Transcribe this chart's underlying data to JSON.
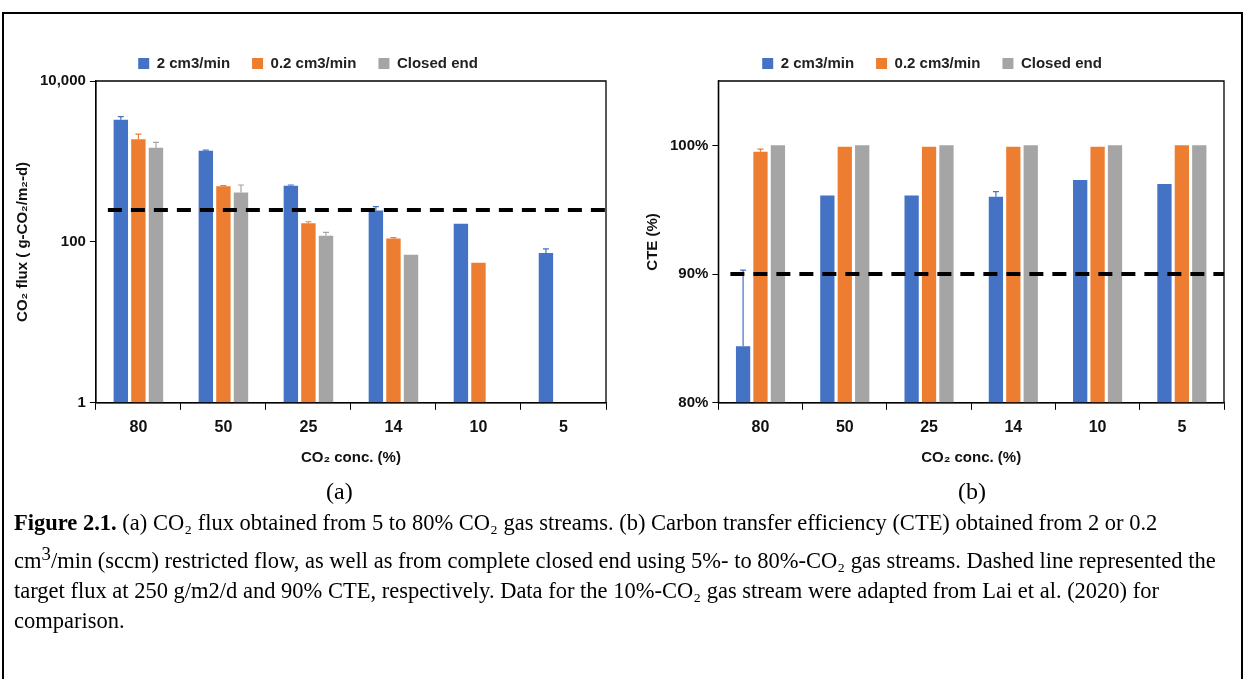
{
  "chart_data": [
    {
      "type": "bar",
      "xlabel": "CO₂ conc. (%)",
      "ylabel": "CO₂ flux ( g-CO₂/m₂-d)",
      "categories": [
        "80",
        "50",
        "25",
        "14",
        "10",
        "5"
      ],
      "log": "y",
      "ylim": [
        1,
        10000
      ],
      "yticks": [
        1,
        100,
        {
          "value": 10000,
          "label": "10,000"
        }
      ],
      "legend": "top",
      "series": [
        {
          "name": "2 cm3/min",
          "color": "#4472c4",
          "values": [
            3300,
            1360,
            500,
            245,
            168,
            73
          ],
          "errors": [
            300,
            20,
            10,
            30,
            null,
            9
          ]
        },
        {
          "name": "0.2 cm3/min",
          "color": "#ed7d31",
          "values": [
            1890,
            490,
            170,
            110,
            55,
            null
          ],
          "errors": [
            300,
            10,
            8,
            3,
            null,
            null
          ]
        },
        {
          "name": "Closed end",
          "color": "#a5a5a5",
          "values": [
            1480,
            410,
            119,
            69,
            null,
            null
          ],
          "errors": [
            250,
            100,
            12,
            null,
            null,
            null
          ]
        }
      ],
      "ref_lines": [
        {
          "axis": "y",
          "value": 250,
          "color": "#000000",
          "line_style": "dashed"
        }
      ],
      "annotations": [
        "(a)",
        "Figure 2.1.",
        "(a)  CO₂ flux obtained from 5 to 80% CO₂ gas streams.  (b) Carbon transfer efficiency (CTE) obtained from 2 or 0.2 cm$^{3}$/min (sccm) restricted flow, as well as from complete closed end using 5%- to 80%-CO₂ gas streams.  Dashed line represented the target flux at 250 g/m2/d and 90% CTE, respectively.  Data for the 10%-CO₂ gas stream were adapted from Lai et al. (2020) for comparison."
      ]
    },
    {
      "type": "bar",
      "xlabel": "CO₂ conc. (%)",
      "ylabel": "CTE (%)",
      "categories": [
        "80",
        "50",
        "25",
        "14",
        "10",
        "5"
      ],
      "ylim": [
        80,
        105
      ],
      "yticks": [
        {
          "value": 80,
          "label": "80%"
        },
        {
          "value": 90,
          "label": "90%"
        },
        {
          "value": 100,
          "label": "100%"
        }
      ],
      "legend": "top",
      "series": [
        {
          "name": "2 cm3/min",
          "color": "#4472c4",
          "values": [
            84.4,
            96.1,
            96.1,
            96.0,
            97.3,
            97.0
          ],
          "errors": [
            5.9,
            null,
            null,
            0.4,
            null,
            null
          ]
        },
        {
          "name": "0.2 cm3/min",
          "color": "#ed7d31",
          "values": [
            99.5,
            99.9,
            99.9,
            99.9,
            99.9,
            100
          ],
          "errors": [
            0.2,
            null,
            null,
            null,
            null,
            null
          ]
        },
        {
          "name": "Closed end",
          "color": "#a5a5a5",
          "values": [
            100,
            100,
            100,
            100,
            100,
            100
          ]
        }
      ],
      "ref_lines": [
        {
          "axis": "y",
          "value": 90,
          "color": "#000000",
          "line_style": "dashed"
        }
      ],
      "annotations": [
        "(b)"
      ]
    }
  ]
}
